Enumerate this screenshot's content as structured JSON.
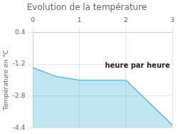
{
  "chart_data": {
    "type": "area",
    "title": "Evolution de la température",
    "ylabel": "Température en °C",
    "x": [
      0,
      0.5,
      1.0,
      2.0,
      3.0
    ],
    "values": [
      -1.38,
      -1.82,
      -2.0,
      -2.0,
      -4.25
    ],
    "color": "#62bdd4",
    "xlim": [
      0,
      3
    ],
    "xticks": [
      0,
      1,
      2,
      3
    ],
    "ylim": [
      -4.4,
      0.4
    ],
    "yticks": [
      0.4,
      -1.2,
      -2.8,
      -4.4
    ],
    "grid": true,
    "annotations": [
      {
        "text": "heure par heure",
        "x": 1.55,
        "y": -1.3
      }
    ]
  }
}
